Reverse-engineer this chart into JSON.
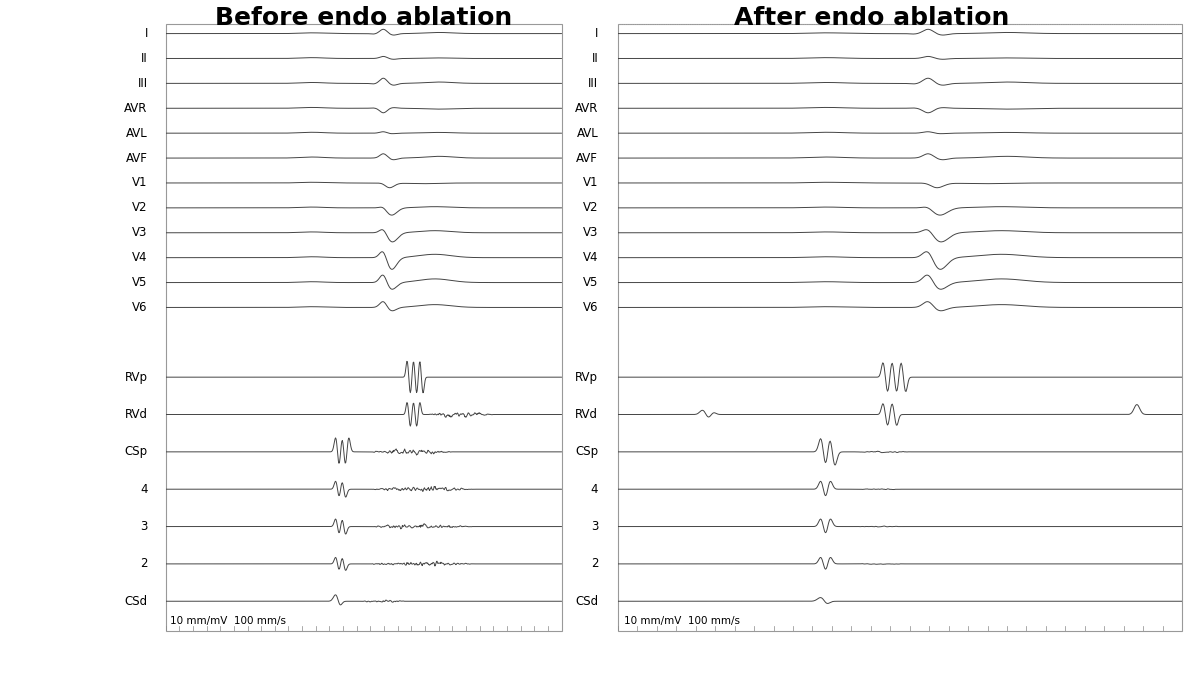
{
  "title_left": "Before endo ablation",
  "title_right": "After endo ablation",
  "background_color": "#ffffff",
  "lead_labels_ecg": [
    "I",
    "II",
    "III",
    "AVR",
    "AVL",
    "AVF",
    "V1",
    "V2",
    "V3",
    "V4",
    "V5",
    "V6"
  ],
  "lead_labels_eg": [
    "RVp",
    "RVd",
    "CSp",
    "4",
    "3",
    "2",
    "CSd"
  ],
  "scale_text": "10 mm/mV  100 mm/s",
  "line_color": "#444444",
  "line_width": 0.7,
  "title_fontsize": 18,
  "label_fontsize": 8.5,
  "scale_fontsize": 7.5,
  "panel_border_color": "#999999",
  "tick_color": "#888888"
}
